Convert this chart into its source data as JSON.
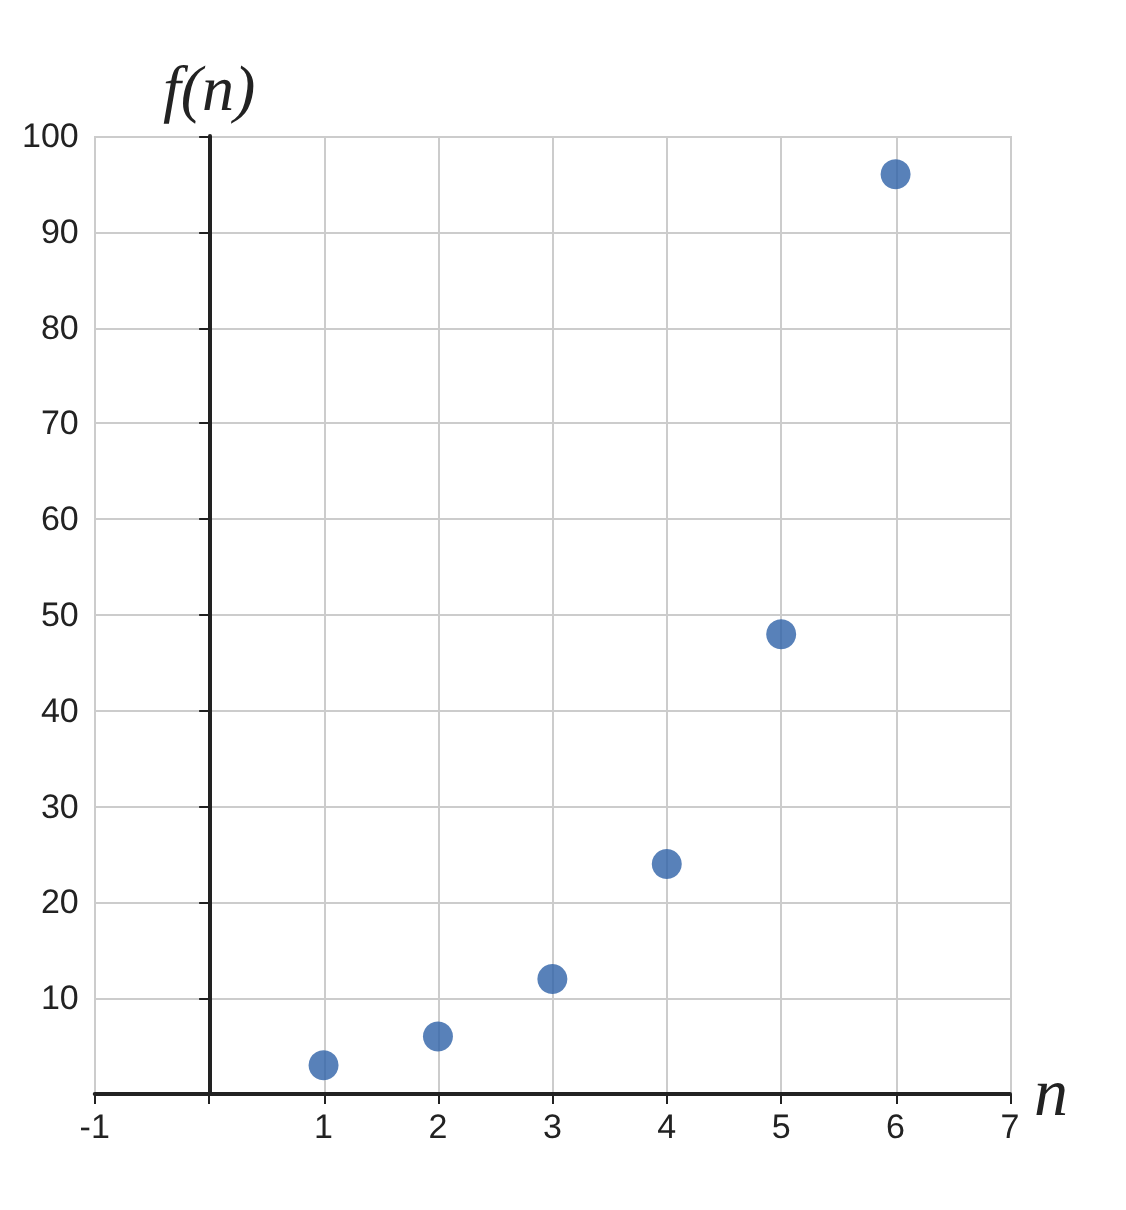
{
  "chart_data": {
    "type": "scatter",
    "xlabel": "n",
    "ylabel": "f(n)",
    "x": [
      1,
      2,
      3,
      4,
      5,
      6
    ],
    "values": [
      3,
      6,
      12,
      24,
      48,
      96
    ],
    "color": "#2e62a8",
    "marker": "circle",
    "grid": true,
    "xlim": [
      -1,
      7
    ],
    "xticks": [
      -1,
      {
        "value": 0,
        "label": null
      },
      1,
      2,
      3,
      4,
      5,
      6,
      7
    ],
    "ylim": [
      0,
      100
    ],
    "yticks": [
      {
        "value": 0,
        "label": null
      },
      10,
      20,
      30,
      40,
      50,
      60,
      70,
      80,
      90,
      100
    ]
  }
}
